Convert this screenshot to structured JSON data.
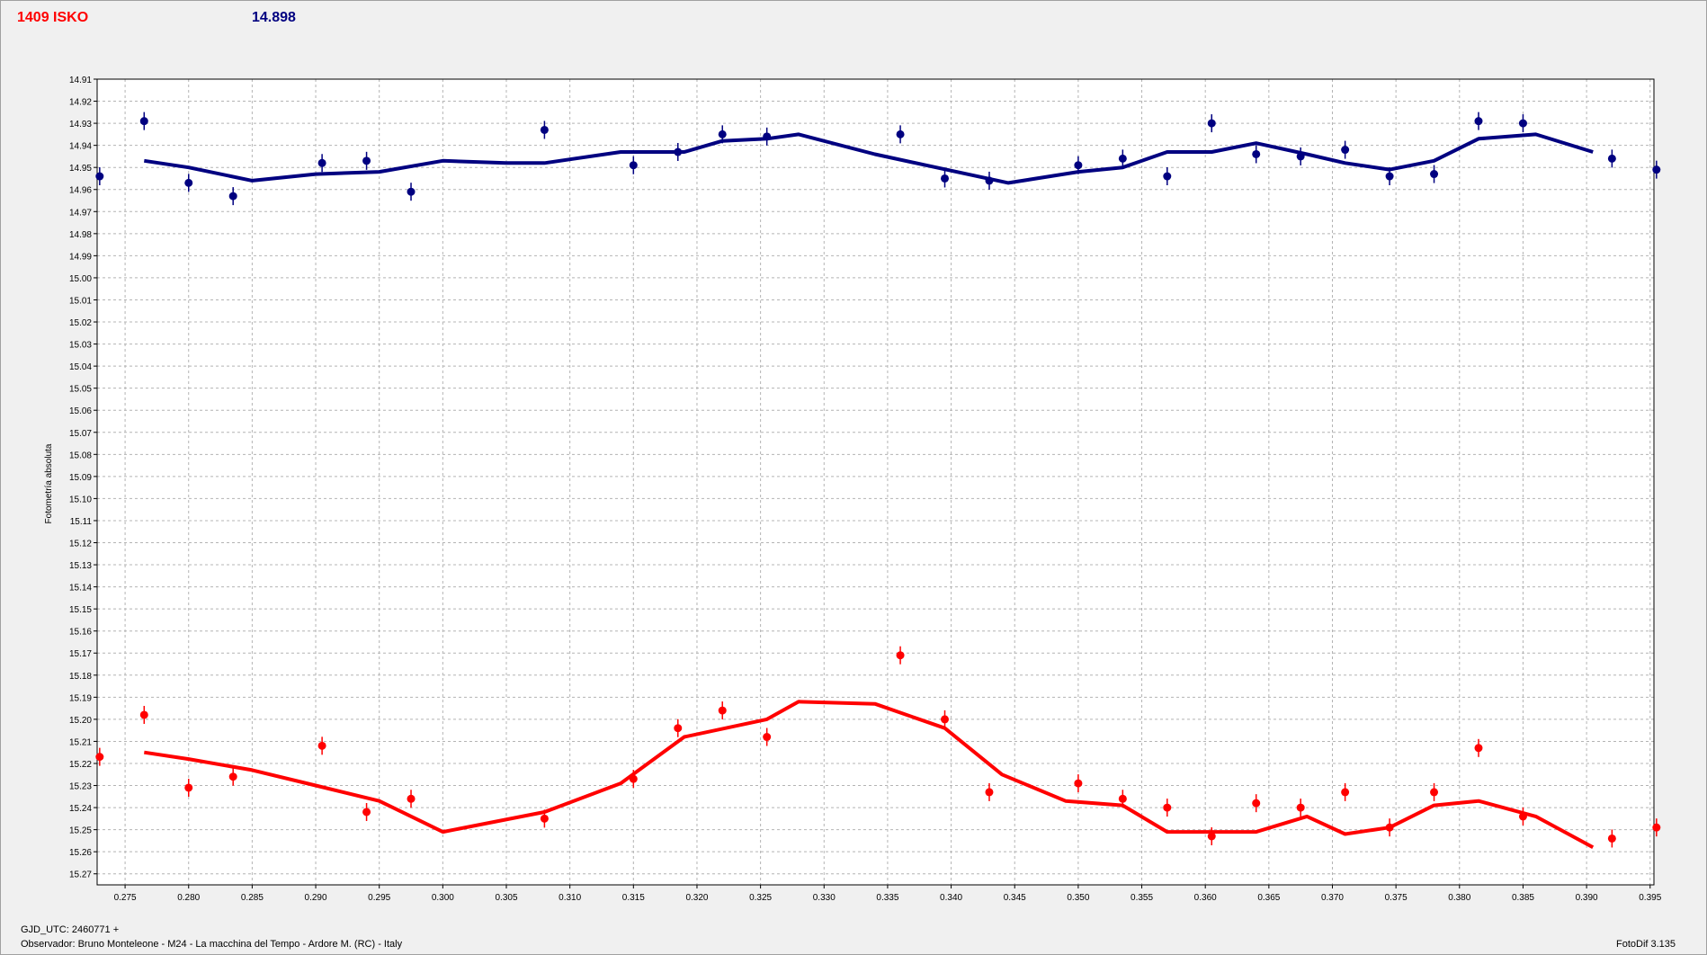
{
  "header": {
    "target_label": "1409 ISKO",
    "value_label": "14.898",
    "target_color": "#ff0000",
    "value_color": "#000080"
  },
  "footer": {
    "gjd": "GJD_UTC: 2460771 +",
    "observer": "Observador: Bruno Monteleone - M24 - La macchina del Tempo - Ardore M. (RC) - Italy",
    "version": "FotoDif 3.135"
  },
  "chart_data": {
    "type": "scatter",
    "ylabel": "Fotometría absoluta",
    "xlabel": "",
    "xlim": [
      0.2728,
      0.3953
    ],
    "ylim": [
      14.91,
      15.275
    ],
    "y_inverted": true,
    "grid": true,
    "x_ticks": [
      "0.275",
      "0.280",
      "0.285",
      "0.290",
      "0.295",
      "0.300",
      "0.305",
      "0.310",
      "0.315",
      "0.320",
      "0.325",
      "0.330",
      "0.335",
      "0.340",
      "0.345",
      "0.350",
      "0.355",
      "0.360",
      "0.365",
      "0.370",
      "0.375",
      "0.380",
      "0.385",
      "0.390",
      "0.395"
    ],
    "y_ticks": [
      "14.91",
      "14.92",
      "14.93",
      "14.94",
      "14.95",
      "14.96",
      "14.97",
      "14.98",
      "14.99",
      "15.00",
      "15.01",
      "15.02",
      "15.03",
      "15.04",
      "15.05",
      "15.06",
      "15.07",
      "15.08",
      "15.09",
      "15.10",
      "15.11",
      "15.12",
      "15.13",
      "15.14",
      "15.15",
      "15.16",
      "15.17",
      "15.18",
      "15.19",
      "15.20",
      "15.21",
      "15.22",
      "15.23",
      "15.24",
      "15.25",
      "15.26",
      "15.27"
    ],
    "series": [
      {
        "color": "#000080",
        "points": [
          [
            0.273,
            14.954
          ],
          [
            0.2765,
            14.929
          ],
          [
            0.28,
            14.957
          ],
          [
            0.2835,
            14.963
          ],
          [
            0.2905,
            14.948
          ],
          [
            0.294,
            14.947
          ],
          [
            0.2975,
            14.961
          ],
          [
            0.308,
            14.933
          ],
          [
            0.315,
            14.949
          ],
          [
            0.3185,
            14.943
          ],
          [
            0.322,
            14.935
          ],
          [
            0.3255,
            14.936
          ],
          [
            0.336,
            14.935
          ],
          [
            0.3395,
            14.955
          ],
          [
            0.343,
            14.956
          ],
          [
            0.35,
            14.949
          ],
          [
            0.3535,
            14.946
          ],
          [
            0.357,
            14.954
          ],
          [
            0.3605,
            14.93
          ],
          [
            0.364,
            14.944
          ],
          [
            0.3675,
            14.945
          ],
          [
            0.371,
            14.942
          ],
          [
            0.3745,
            14.954
          ],
          [
            0.378,
            14.953
          ],
          [
            0.3815,
            14.929
          ],
          [
            0.385,
            14.93
          ],
          [
            0.392,
            14.946
          ],
          [
            0.3955,
            14.951
          ]
        ],
        "trend": [
          [
            0.2765,
            14.947
          ],
          [
            0.28,
            14.95
          ],
          [
            0.285,
            14.956
          ],
          [
            0.29,
            14.953
          ],
          [
            0.295,
            14.952
          ],
          [
            0.3,
            14.947
          ],
          [
            0.305,
            14.948
          ],
          [
            0.308,
            14.948
          ],
          [
            0.314,
            14.943
          ],
          [
            0.319,
            14.943
          ],
          [
            0.322,
            14.938
          ],
          [
            0.3255,
            14.937
          ],
          [
            0.328,
            14.935
          ],
          [
            0.334,
            14.944
          ],
          [
            0.338,
            14.949
          ],
          [
            0.3445,
            14.957
          ],
          [
            0.35,
            14.952
          ],
          [
            0.3535,
            14.95
          ],
          [
            0.357,
            14.943
          ],
          [
            0.3605,
            14.943
          ],
          [
            0.364,
            14.939
          ],
          [
            0.368,
            14.944
          ],
          [
            0.371,
            14.948
          ],
          [
            0.3745,
            14.951
          ],
          [
            0.378,
            14.947
          ],
          [
            0.3815,
            14.937
          ],
          [
            0.386,
            14.935
          ],
          [
            0.3905,
            14.943
          ]
        ]
      },
      {
        "color": "#ff0000",
        "points": [
          [
            0.273,
            15.217
          ],
          [
            0.2765,
            15.198
          ],
          [
            0.28,
            15.231
          ],
          [
            0.2835,
            15.226
          ],
          [
            0.2905,
            15.212
          ],
          [
            0.294,
            15.242
          ],
          [
            0.2975,
            15.236
          ],
          [
            0.308,
            15.245
          ],
          [
            0.315,
            15.227
          ],
          [
            0.3185,
            15.204
          ],
          [
            0.322,
            15.196
          ],
          [
            0.3255,
            15.208
          ],
          [
            0.336,
            15.171
          ],
          [
            0.3395,
            15.2
          ],
          [
            0.343,
            15.233
          ],
          [
            0.35,
            15.229
          ],
          [
            0.3535,
            15.236
          ],
          [
            0.357,
            15.24
          ],
          [
            0.3605,
            15.253
          ],
          [
            0.364,
            15.238
          ],
          [
            0.3675,
            15.24
          ],
          [
            0.371,
            15.233
          ],
          [
            0.3745,
            15.249
          ],
          [
            0.378,
            15.233
          ],
          [
            0.3815,
            15.213
          ],
          [
            0.385,
            15.244
          ],
          [
            0.392,
            15.254
          ],
          [
            0.3955,
            15.249
          ]
        ],
        "trend": [
          [
            0.2765,
            15.215
          ],
          [
            0.28,
            15.218
          ],
          [
            0.285,
            15.223
          ],
          [
            0.29,
            15.23
          ],
          [
            0.295,
            15.237
          ],
          [
            0.3,
            15.251
          ],
          [
            0.308,
            15.242
          ],
          [
            0.314,
            15.229
          ],
          [
            0.319,
            15.208
          ],
          [
            0.3255,
            15.2
          ],
          [
            0.328,
            15.192
          ],
          [
            0.334,
            15.193
          ],
          [
            0.3395,
            15.204
          ],
          [
            0.344,
            15.225
          ],
          [
            0.349,
            15.237
          ],
          [
            0.3535,
            15.239
          ],
          [
            0.357,
            15.251
          ],
          [
            0.3605,
            15.251
          ],
          [
            0.364,
            15.251
          ],
          [
            0.368,
            15.244
          ],
          [
            0.371,
            15.252
          ],
          [
            0.3745,
            15.249
          ],
          [
            0.378,
            15.239
          ],
          [
            0.3815,
            15.237
          ],
          [
            0.386,
            15.244
          ],
          [
            0.3905,
            15.258
          ]
        ]
      }
    ]
  }
}
